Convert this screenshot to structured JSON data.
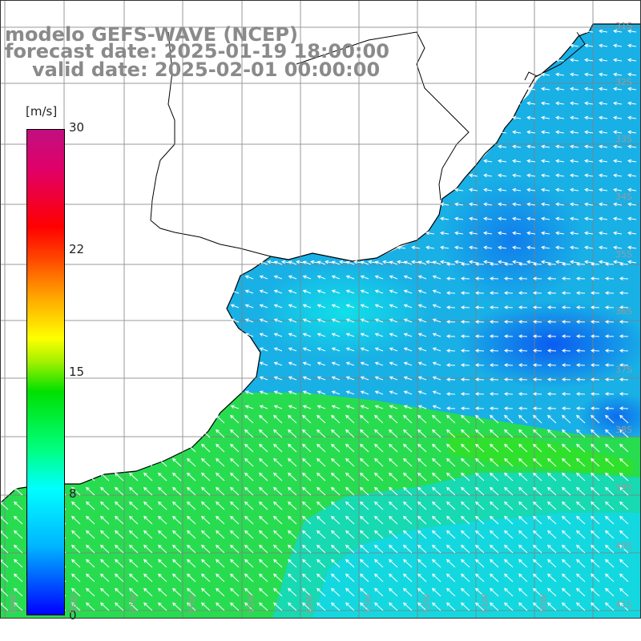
{
  "title": {
    "model": "modelo GEFS-WAVE (NCEP)",
    "forecast": "forecast date: 2025-01-19 18:00:00",
    "valid": "valid date: 2025-02-01 00:00:00"
  },
  "colorbar": {
    "unit": "[m/s]",
    "ticks": [
      "30",
      "22",
      "15",
      "8",
      "0"
    ],
    "colors": [
      "#0000ff",
      "#00b4ff",
      "#00ffff",
      "#00e000",
      "#ffff00",
      "#ffa000",
      "#ff0000",
      "#c01080"
    ]
  },
  "map": {
    "lat_labels": [
      "31S",
      "32S",
      "33S",
      "34S",
      "35S",
      "36S",
      "37S",
      "38S",
      "39S",
      "40S",
      "41S"
    ],
    "lon_labels": [
      "59W",
      "58W",
      "57W",
      "56W",
      "55W",
      "54W",
      "53W",
      "52W",
      "51W",
      "50W"
    ],
    "field": "wind speed with direction arrows",
    "land_color": "#ffffff",
    "coastline_color": "#000000",
    "grid_color": "#808080",
    "arrow_color": "#ffffff"
  }
}
